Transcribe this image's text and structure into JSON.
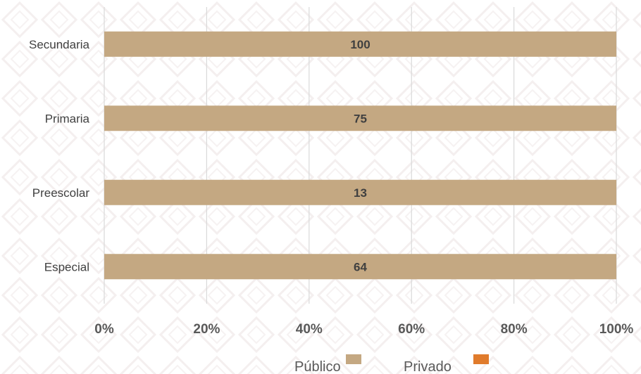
{
  "colors": {
    "publico": "#c4a882",
    "privado": "#e07b2c",
    "grid": "#d9d9d9",
    "pattern": "#f3eeee"
  },
  "chart_data": {
    "type": "bar",
    "orientation": "horizontal",
    "stacked": true,
    "percent_scale": true,
    "title": "",
    "categories": [
      "Secundaria",
      "Primaria",
      "Preescolar",
      "Especial"
    ],
    "series": [
      {
        "name": "Público",
        "values": [
          100,
          75,
          13,
          64
        ],
        "labels": [
          "100",
          "75",
          "13",
          "64"
        ]
      },
      {
        "name": "Privado",
        "values": [
          0,
          0,
          0,
          0
        ]
      }
    ],
    "xlim": [
      0,
      100
    ],
    "xticks": [
      "0%",
      "20%",
      "40%",
      "60%",
      "80%",
      "100%"
    ],
    "grid": true,
    "legend_position": "bottom"
  }
}
